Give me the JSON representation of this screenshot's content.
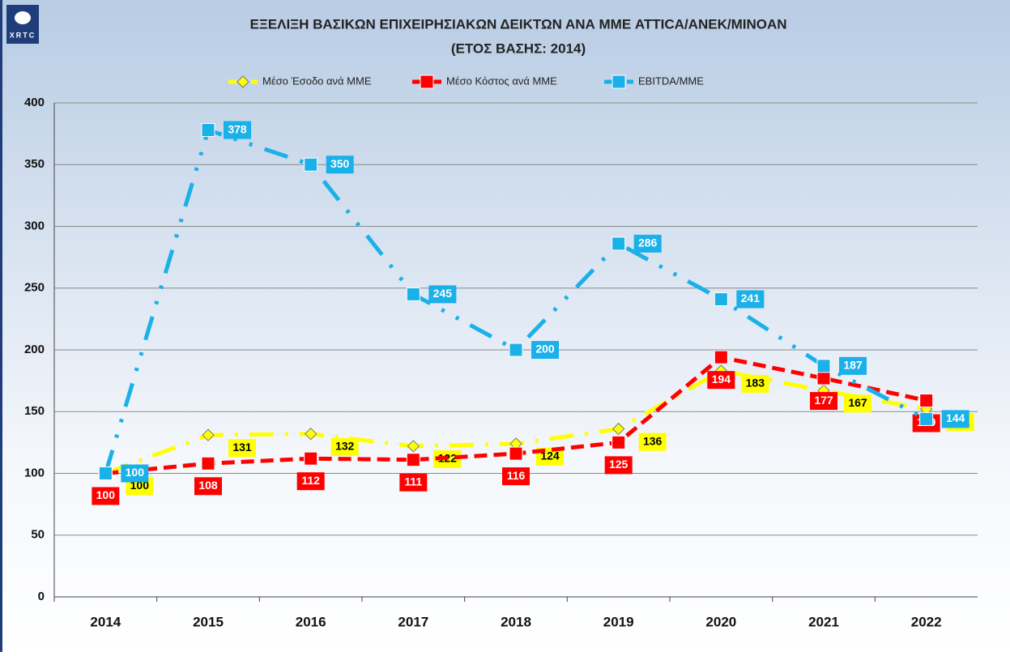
{
  "logo": "XRTC",
  "chart_data": {
    "type": "line",
    "title": "ΕΞΕΛΙΞΗ ΒΑΣΙΚΩΝ ΕΠΙΧΕΙΡΗΣΙΑΚΩΝ ΔΕΙΚΤΩΝ ΑΝΑ ΜΜΕ ATTICA/ANEK/MINOAN",
    "subtitle": "(ΕΤΟΣ ΒΑΣΗΣ: 2014)",
    "categories": [
      "2014",
      "2015",
      "2016",
      "2017",
      "2018",
      "2019",
      "2020",
      "2021",
      "2022"
    ],
    "series": [
      {
        "name": "Μέσο Έσοδο ανά ΜΜΕ",
        "color": "#ffff00",
        "values": [
          100,
          131,
          132,
          122,
          124,
          136,
          183,
          167,
          152
        ]
      },
      {
        "name": "Μέσο Κόστος ανά ΜΜΕ",
        "color": "#ff0000",
        "values": [
          100,
          108,
          112,
          111,
          116,
          125,
          194,
          177,
          159
        ]
      },
      {
        "name": "EBITDA/ΜΜΕ",
        "color": "#1ab0e8",
        "values": [
          100,
          378,
          350,
          245,
          200,
          286,
          241,
          187,
          144
        ]
      }
    ],
    "ylim": [
      0,
      400
    ],
    "yticks": [
      0,
      50,
      100,
      150,
      200,
      250,
      300,
      350,
      400
    ],
    "grid": true
  }
}
